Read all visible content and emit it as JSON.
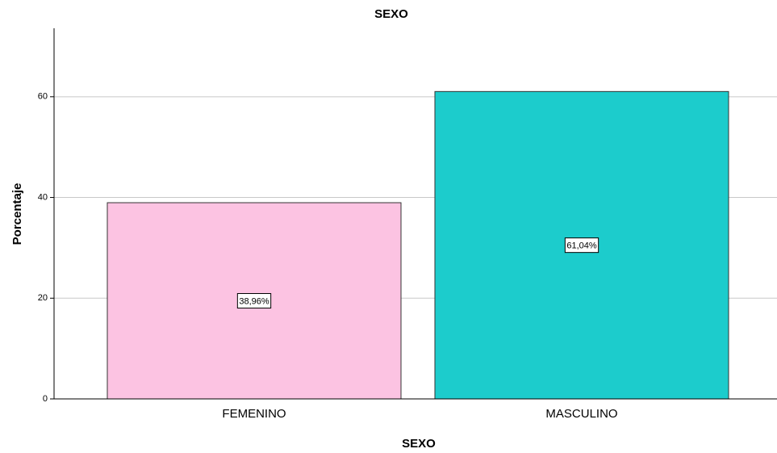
{
  "chart_data": {
    "type": "bar",
    "title": "SEXO",
    "x_label": "SEXO",
    "y_label": "Porcentaje",
    "categories": [
      "FEMENINO",
      "MASCULINO"
    ],
    "values": [
      38.96,
      61.04
    ],
    "value_labels": [
      "38,96%",
      "61,04%"
    ],
    "colors": [
      "#fcc3e2",
      "#1ccccc"
    ],
    "ylim": [
      0,
      73.6
    ],
    "yticks": [
      0,
      20,
      40,
      60
    ],
    "grid": true
  }
}
